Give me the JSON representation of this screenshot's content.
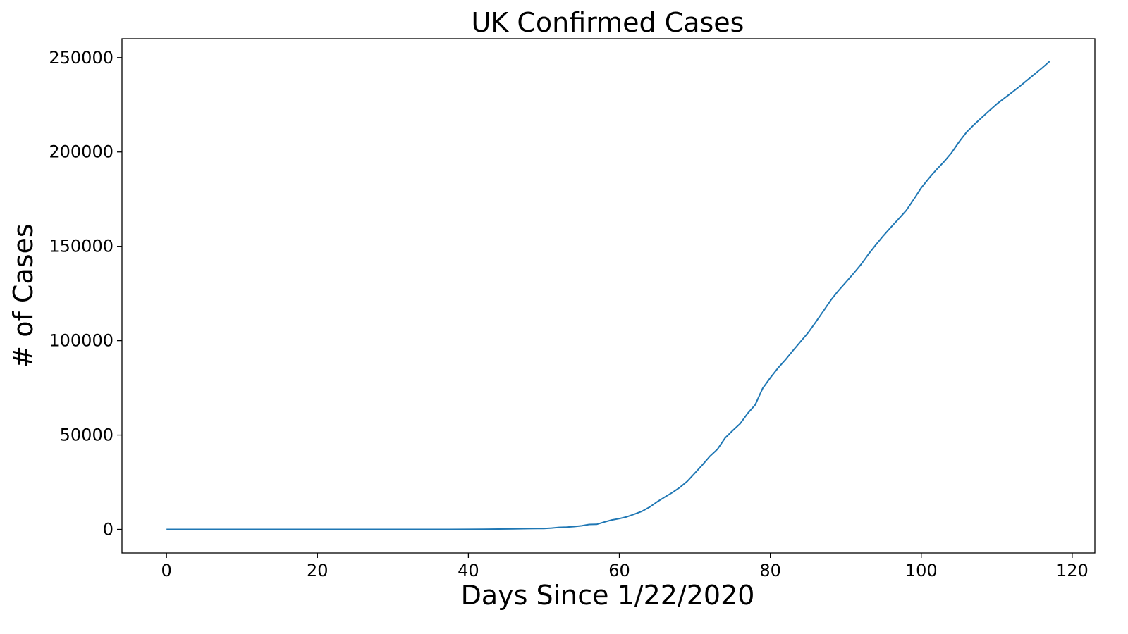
{
  "chart_data": {
    "type": "line",
    "title": "UK Confirmed Cases",
    "xlabel": "Days Since 1/22/2020",
    "ylabel": "# of Cases",
    "xlim": [
      -5.9,
      123.0
    ],
    "ylim": [
      -12500,
      260000
    ],
    "xticks": [
      0,
      20,
      40,
      60,
      80,
      100,
      120
    ],
    "yticks": [
      0,
      50000,
      100000,
      150000,
      200000,
      250000
    ],
    "grid": false,
    "line_color": "#1f77b4",
    "series": [
      {
        "x": [
          0,
          5,
          10,
          15,
          20,
          25,
          30,
          35,
          40,
          42,
          44,
          46,
          48,
          50,
          51,
          52,
          53,
          54,
          55,
          56,
          57,
          58,
          59,
          60,
          61,
          62,
          63,
          64,
          65,
          66,
          67,
          68,
          69,
          70,
          71,
          72,
          73,
          74,
          75,
          76,
          77,
          78,
          79,
          80,
          81,
          82,
          83,
          84,
          85,
          86,
          87,
          88,
          89,
          90,
          91,
          92,
          93,
          94,
          95,
          96,
          97,
          98,
          99,
          100,
          101,
          102,
          103,
          104,
          105,
          106,
          107,
          108,
          109,
          110,
          111,
          112,
          113,
          114,
          115,
          116,
          117
        ],
        "y": [
          0,
          0,
          0,
          0,
          0,
          0,
          0,
          0,
          40,
          100,
          200,
          300,
          400,
          500,
          700,
          1100,
          1200,
          1500,
          1900,
          2600,
          2700,
          3900,
          5000,
          5700,
          6700,
          8100,
          9600,
          11800,
          14600,
          17100,
          19500,
          22200,
          25500,
          29800,
          34200,
          38800,
          42500,
          48400,
          52300,
          56000,
          61500,
          66000,
          74800,
          80300,
          85400,
          89900,
          94800,
          99500,
          104200,
          109800,
          115500,
          121400,
          126400,
          130900,
          135500,
          140300,
          145800,
          150900,
          155700,
          160200,
          164500,
          169000,
          174900,
          181000,
          186000,
          190600,
          194800,
          199500,
          205300,
          210500,
          214500,
          218200,
          221800,
          225400,
          228500,
          231500,
          234600,
          237900,
          241200,
          244500,
          248000
        ]
      }
    ]
  }
}
